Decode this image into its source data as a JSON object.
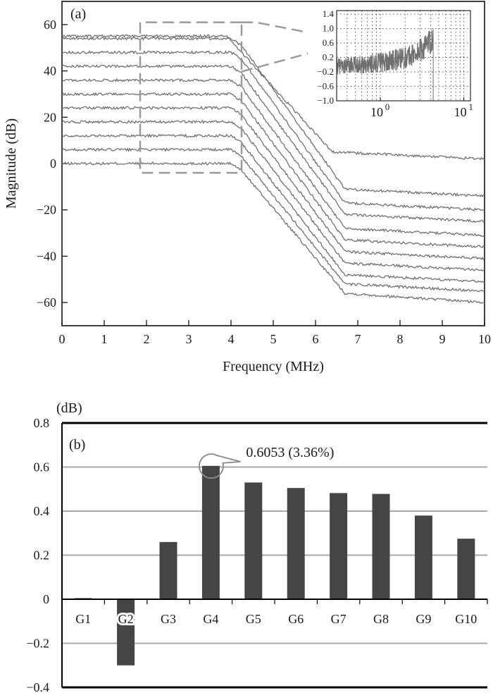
{
  "chart_data": [
    {
      "panel": "(a)",
      "type": "line",
      "xlabel": "Frequency (MHz)",
      "ylabel": "Magnitude (dB)",
      "xlim": [
        0,
        10
      ],
      "ylim": [
        -70,
        70
      ],
      "xticks": [
        0,
        1,
        2,
        3,
        4,
        5,
        6,
        7,
        8,
        9,
        10
      ],
      "yticks": [
        -60,
        -40,
        -20,
        0,
        20,
        40,
        60
      ],
      "line_color": "#707070",
      "series": [
        {
          "values_x": [
            0,
            4,
            4.25,
            6.7,
            10
          ],
          "values_y": [
            0,
            0,
            -3,
            -56,
            -60
          ]
        },
        {
          "values_x": [
            0,
            4,
            4.25,
            6.7,
            10
          ],
          "values_y": [
            6,
            6,
            3,
            -52,
            -55
          ]
        },
        {
          "values_x": [
            0,
            4,
            4.25,
            6.7,
            10
          ],
          "values_y": [
            12,
            12,
            9,
            -48,
            -51
          ]
        },
        {
          "values_x": [
            0,
            4,
            4.25,
            6.7,
            10
          ],
          "values_y": [
            18,
            18,
            15,
            -43,
            -46
          ]
        },
        {
          "values_x": [
            0,
            4,
            4.25,
            6.7,
            10
          ],
          "values_y": [
            24,
            24,
            21,
            -38,
            -41
          ]
        },
        {
          "values_x": [
            0,
            4,
            4.25,
            6.7,
            10
          ],
          "values_y": [
            30,
            30,
            27,
            -33,
            -36
          ]
        },
        {
          "values_x": [
            0,
            4,
            4.25,
            6.7,
            10
          ],
          "values_y": [
            36,
            36,
            33,
            -28,
            -31
          ]
        },
        {
          "values_x": [
            0,
            4,
            4.25,
            6.7,
            10
          ],
          "values_y": [
            42,
            42,
            39,
            -22,
            -25
          ]
        },
        {
          "values_x": [
            0,
            4,
            4.25,
            6.7,
            10
          ],
          "values_y": [
            48,
            48,
            45,
            -17,
            -20
          ]
        },
        {
          "values_x": [
            0,
            4,
            4.25,
            6.7,
            10
          ],
          "values_y": [
            54,
            54,
            51,
            -11,
            -14
          ]
        },
        {
          "values_x": [
            0,
            3.9,
            6.4,
            10
          ],
          "values_y": [
            55,
            55,
            5,
            2
          ]
        }
      ],
      "zoom_box": {
        "x": [
          1.85,
          4.25
        ],
        "y": [
          -4,
          61
        ]
      },
      "inset": {
        "type": "line",
        "xscale": "log",
        "xlim": [
          0.3,
          12
        ],
        "ylim": [
          -1.0,
          1.5
        ],
        "yticks": [
          "1.4",
          "1.0",
          "0.6",
          "0.2",
          "−0.2",
          "−0.6",
          "−1.0"
        ],
        "ytick_values": [
          1.4,
          1.0,
          0.6,
          0.2,
          -0.2,
          -0.6,
          -1.0
        ],
        "xtick_values": [
          1,
          10
        ],
        "xtick_base": [
          "10",
          "10"
        ],
        "xtick_exp": [
          "0",
          "1"
        ],
        "line_color": "#707070",
        "x_end": 4.3
      }
    },
    {
      "panel": "(b)",
      "type": "bar",
      "unit_label": "(dB)",
      "categories": [
        "G1",
        "G2",
        "G3",
        "G4",
        "G5",
        "G6",
        "G7",
        "G8",
        "G9",
        "G10"
      ],
      "values": [
        0.005,
        -0.3,
        0.26,
        0.6053,
        0.53,
        0.505,
        0.482,
        0.478,
        0.38,
        0.275
      ],
      "ylim": [
        -0.4,
        0.8
      ],
      "yticks": [
        "−0.4",
        "−0.2",
        "0",
        "0.2",
        "0.4",
        "0.6",
        "0.8"
      ],
      "ytick_values": [
        -0.4,
        -0.2,
        0,
        0.2,
        0.4,
        0.6,
        0.8
      ],
      "bar_color": "#454545",
      "grid_color": "#a8a8a8",
      "annotation": {
        "text": "0.6053 (3.36%)",
        "category": "G4"
      }
    }
  ]
}
